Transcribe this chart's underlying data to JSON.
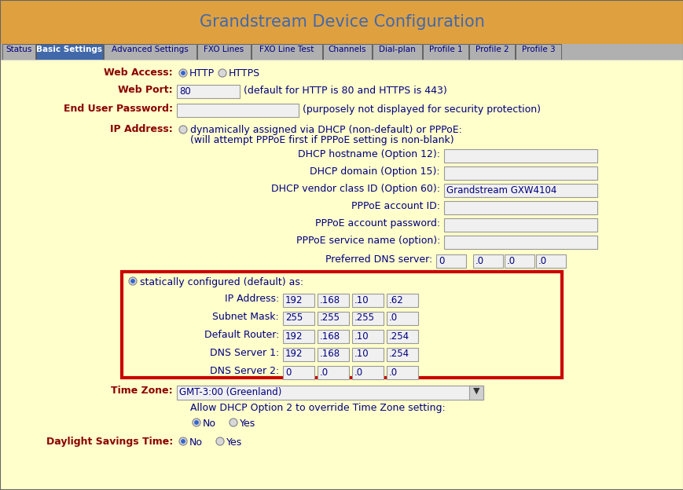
{
  "title": "Grandstream Device Configuration",
  "title_color": "#4169aa",
  "bg_header": "#dfa040",
  "bg_content": "#ffffcc",
  "bg_figure": "#dfa040",
  "nav_items": [
    "Status",
    "Basic Settings",
    "Advanced Settings",
    "FXO Lines",
    "FXO Line Test",
    "Channels",
    "Dial-plan",
    "Profile 1",
    "Profile 2",
    "Profile 3"
  ],
  "nav_active": "Basic Settings",
  "nav_bg": "#b0b0b0",
  "nav_active_bg": "#4169aa",
  "nav_text_color": "#000080",
  "label_color": "#8b0000",
  "highlight_border": "#cc0000",
  "highlight_bg": "#ffffcc",
  "dhcp_fields": [
    {
      "label": "DHCP hostname (Option 12):",
      "value": ""
    },
    {
      "label": "DHCP domain (Option 15):",
      "value": ""
    },
    {
      "label": "DHCP vendor class ID (Option 60):",
      "value": "Grandstream GXW4104"
    },
    {
      "label": "PPPoE account ID:",
      "value": ""
    },
    {
      "label": "PPPoE account password:",
      "value": ""
    },
    {
      "label": "PPPoE service name (option):",
      "value": ""
    }
  ],
  "preferred_dns": [
    "0",
    ".0",
    ".0",
    ".0"
  ],
  "static_fields": [
    {
      "label": "IP Address:",
      "octets": [
        "192",
        ".168",
        ".10",
        ".62"
      ]
    },
    {
      "label": "Subnet Mask:",
      "octets": [
        "255",
        ".255",
        ".255",
        ".0"
      ]
    },
    {
      "label": "Default Router:",
      "octets": [
        "192",
        ".168",
        ".10",
        ".254"
      ]
    },
    {
      "label": "DNS Server 1:",
      "octets": [
        "192",
        ".168",
        ".10",
        ".254"
      ]
    },
    {
      "label": "DNS Server 2:",
      "octets": [
        "0",
        ".0",
        ".0",
        ".0"
      ]
    }
  ],
  "timezone_value": "GMT-3:00 (Greenland)",
  "nav_widths": [
    42,
    85,
    118,
    68,
    90,
    62,
    63,
    58,
    58,
    58
  ]
}
